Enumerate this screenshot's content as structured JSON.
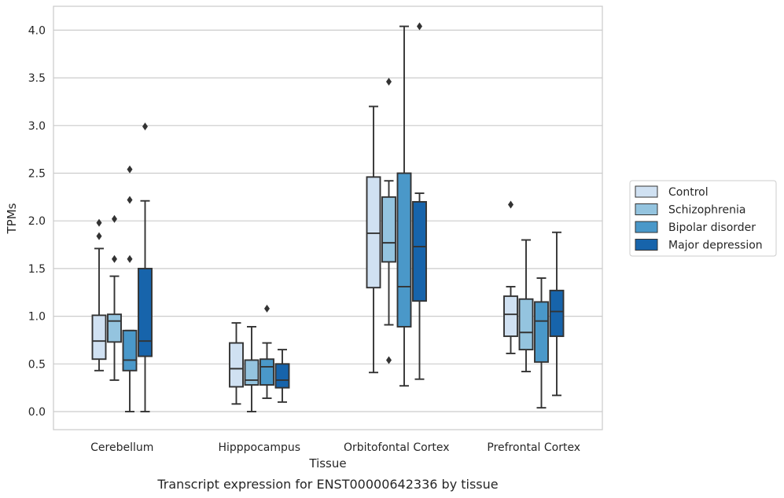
{
  "caption": "Transcript expression for ENST00000642336 by tissue",
  "chart_data": {
    "type": "box",
    "xlabel": "Tissue",
    "ylabel": "TPMs",
    "ylim": [
      -0.19,
      4.25
    ],
    "yticks": [
      "0.0",
      "0.5",
      "1.0",
      "1.5",
      "2.0",
      "2.5",
      "3.0",
      "3.5",
      "4.0"
    ],
    "grid": true,
    "legend_position": "right",
    "categories": [
      "Cerebellum",
      "Hipppocampus",
      "Orbitofontal Cortex",
      "Prefrontal Cortex"
    ],
    "series": [
      {
        "name": "Control",
        "color": "#d0e1f2",
        "boxes": [
          {
            "whislo": 0.43,
            "q1": 0.55,
            "med": 0.74,
            "q3": 1.01,
            "whishi": 1.71,
            "fliers": [
              1.84,
              1.98
            ]
          },
          {
            "whislo": 0.08,
            "q1": 0.26,
            "med": 0.45,
            "q3": 0.72,
            "whishi": 0.93,
            "fliers": []
          },
          {
            "whislo": 0.41,
            "q1": 1.3,
            "med": 1.87,
            "q3": 2.46,
            "whishi": 3.2,
            "fliers": []
          },
          {
            "whislo": 0.61,
            "q1": 0.79,
            "med": 1.02,
            "q3": 1.21,
            "whishi": 1.31,
            "fliers": [
              2.17
            ]
          }
        ]
      },
      {
        "name": "Schizophrenia",
        "color": "#94c4df",
        "boxes": [
          {
            "whislo": 0.33,
            "q1": 0.73,
            "med": 0.95,
            "q3": 1.02,
            "whishi": 1.42,
            "fliers": [
              1.6,
              2.02
            ]
          },
          {
            "whislo": 0.0,
            "q1": 0.28,
            "med": 0.33,
            "q3": 0.54,
            "whishi": 0.89,
            "fliers": []
          },
          {
            "whislo": 0.91,
            "q1": 1.57,
            "med": 1.77,
            "q3": 2.25,
            "whishi": 2.42,
            "fliers": [
              3.46,
              0.54
            ]
          },
          {
            "whislo": 0.42,
            "q1": 0.65,
            "med": 0.83,
            "q3": 1.18,
            "whishi": 1.8,
            "fliers": []
          }
        ]
      },
      {
        "name": "Bipolar disorder",
        "color": "#4a98c9",
        "boxes": [
          {
            "whislo": 0.0,
            "q1": 0.43,
            "med": 0.54,
            "q3": 0.85,
            "whishi": 0.85,
            "fliers": [
              1.6,
              2.22,
              2.54
            ]
          },
          {
            "whislo": 0.14,
            "q1": 0.28,
            "med": 0.47,
            "q3": 0.55,
            "whishi": 0.72,
            "fliers": [
              1.08
            ]
          },
          {
            "whislo": 0.27,
            "q1": 0.89,
            "med": 1.31,
            "q3": 2.5,
            "whishi": 4.04,
            "fliers": []
          },
          {
            "whislo": 0.04,
            "q1": 0.52,
            "med": 0.95,
            "q3": 1.15,
            "whishi": 1.4,
            "fliers": []
          }
        ]
      },
      {
        "name": "Major depression",
        "color": "#1764ab",
        "boxes": [
          {
            "whislo": 0.0,
            "q1": 0.58,
            "med": 0.74,
            "q3": 1.5,
            "whishi": 2.21,
            "fliers": [
              2.99
            ]
          },
          {
            "whislo": 0.1,
            "q1": 0.25,
            "med": 0.33,
            "q3": 0.5,
            "whishi": 0.65,
            "fliers": []
          },
          {
            "whislo": 0.34,
            "q1": 1.16,
            "med": 1.73,
            "q3": 2.2,
            "whishi": 2.29,
            "fliers": [
              4.04
            ]
          },
          {
            "whislo": 0.17,
            "q1": 0.79,
            "med": 1.05,
            "q3": 1.27,
            "whishi": 1.88,
            "fliers": []
          }
        ]
      }
    ]
  }
}
